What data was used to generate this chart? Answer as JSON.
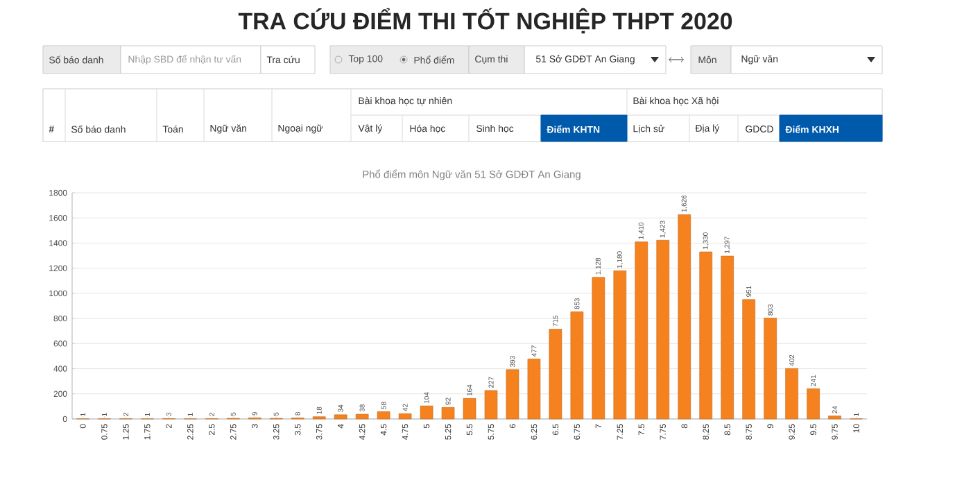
{
  "chart_data": {
    "type": "bar",
    "title": "TRA CỨU ĐIỂM THI TỐT NGHIỆP THPT 2020",
    "subtitle": "Phổ điểm môn  Ngữ văn 51 Sở GDĐT An Giang",
    "annotations": [
      "Số báo danh",
      "Nhập SBD để nhận tư vấn",
      "Tra cứu",
      "Top 100",
      "Phổ điểm",
      "Cụm thi",
      "51 Sở GDĐT An Giang",
      "Môn",
      "Ngữ văn",
      "#",
      "Số báo danh",
      "Toán",
      "Ngữ văn",
      "Ngoại ngữ",
      "Bài khoa học tự nhiên",
      "Vật lý",
      "Hóa học",
      "Sinh học",
      "Điểm KHTN",
      "Bài khoa học Xã hội",
      "Lịch sử",
      "Địa lý",
      "GDCD",
      "Điểm KHXH"
    ],
    "categories": [
      "0",
      "0.75",
      "1.25",
      "1.75",
      "2",
      "2.25",
      "2.5",
      "2.75",
      "3",
      "3.25",
      "3.5",
      "3.75",
      "4",
      "4.25",
      "4.5",
      "4.75",
      "5",
      "5.25",
      "5.5",
      "5.75",
      "6",
      "6.25",
      "6.5",
      "6.75",
      "7",
      "7.25",
      "7.5",
      "7.75",
      "8",
      "8.25",
      "8.5",
      "8.75",
      "9",
      "9.25",
      "9.5",
      "9.75",
      "10"
    ],
    "values": [
      1,
      1,
      2,
      1,
      3,
      1,
      2,
      5,
      9,
      5,
      8,
      18,
      34,
      38,
      58,
      42,
      104,
      92,
      164,
      227,
      393,
      477,
      715,
      853,
      1128,
      1180,
      1410,
      1423,
      1626,
      1330,
      1297,
      951,
      803,
      402,
      241,
      24,
      1
    ],
    "value_labels": [
      "1",
      "1",
      "2",
      "1",
      "3",
      "1",
      "2",
      "5",
      "9",
      "5",
      "8",
      "18",
      "34",
      "38",
      "58",
      "42",
      "104",
      "92",
      "164",
      "227",
      "393",
      "477",
      "715",
      "853",
      "1,128",
      "1,180",
      "1,410",
      "1,423",
      "1,626",
      "1,330",
      "1,297",
      "951",
      "803",
      "402",
      "241",
      "24",
      "1"
    ],
    "color": "#f5821f",
    "ylim": [
      0,
      1800
    ],
    "yticks": [
      0,
      200,
      400,
      600,
      800,
      1000,
      1200,
      1400,
      1600,
      1800
    ],
    "grid": "y"
  }
}
